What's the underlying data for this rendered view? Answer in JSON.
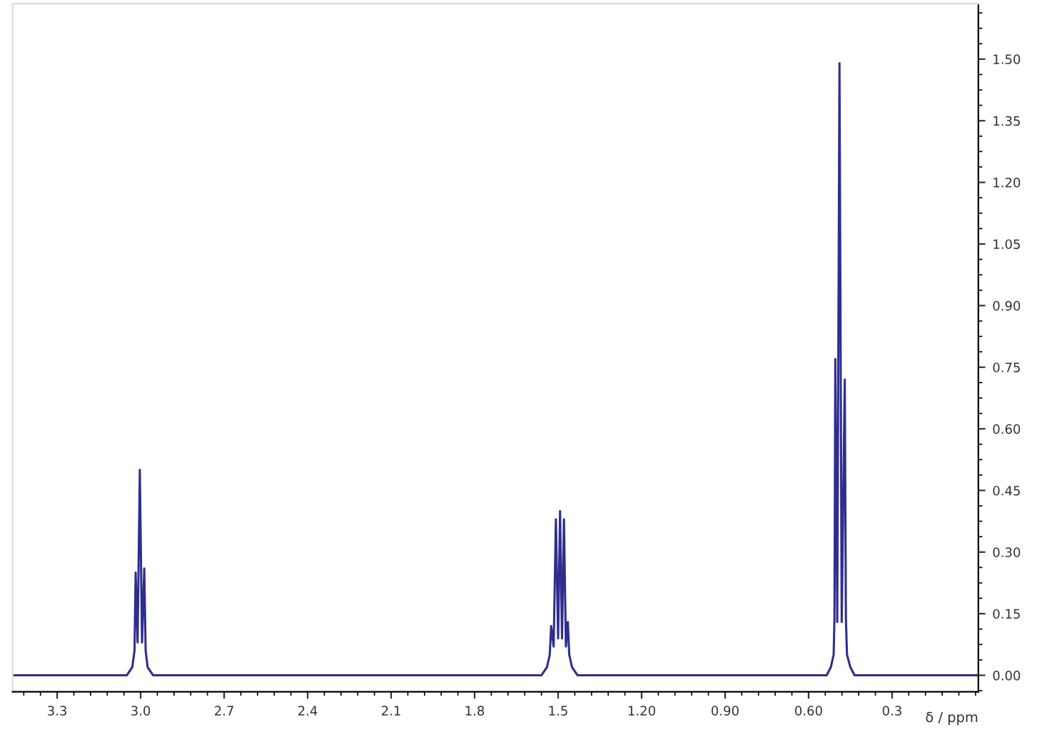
{
  "chart_data": {
    "type": "line",
    "xlabel": "δ / ppm",
    "series": [
      {
        "color": "#2e2e8f",
        "x": [
          3.46,
          3.05,
          3.03,
          3.022,
          3.018,
          3.011,
          3.003,
          2.995,
          2.987,
          2.982,
          2.975,
          2.955,
          1.56,
          1.54,
          1.53,
          1.525,
          1.516,
          1.508,
          1.5,
          1.493,
          1.486,
          1.479,
          1.472,
          1.465,
          1.46,
          1.45,
          1.43,
          0.535,
          0.52,
          0.51,
          0.507,
          0.504,
          0.497,
          0.489,
          0.481,
          0.47,
          0.466,
          0.462,
          0.45,
          0.435,
          -0.01
        ],
        "values": [
          0,
          0,
          0.02,
          0.06,
          0.25,
          0.08,
          0.5,
          0.08,
          0.26,
          0.06,
          0.02,
          0,
          0,
          0.02,
          0.05,
          0.12,
          0.07,
          0.38,
          0.09,
          0.4,
          0.09,
          0.38,
          0.07,
          0.13,
          0.05,
          0.02,
          0,
          0,
          0.02,
          0.05,
          0.14,
          0.77,
          0.13,
          1.49,
          0.13,
          0.72,
          0.14,
          0.05,
          0.02,
          0,
          0
        ]
      }
    ],
    "xlim": [
      3.46,
      -0.01
    ],
    "ylim": [
      -0.04,
      1.635
    ],
    "xticks": [
      3.3,
      {
        "value": 3.0,
        "label": "3.0"
      },
      2.7,
      2.4,
      2.1,
      1.8,
      1.5,
      {
        "value": 1.2,
        "label": "1.20"
      },
      {
        "value": 0.9,
        "label": "0.90"
      },
      {
        "value": 0.6,
        "label": "0.60"
      },
      0.3
    ],
    "yticks": [
      {
        "value": 0,
        "label": "0.00"
      },
      0.15,
      {
        "value": 0.3,
        "label": "0.30"
      },
      0.45,
      {
        "value": 0.6,
        "label": "0.60"
      },
      0.75,
      {
        "value": 0.9,
        "label": "0.90"
      },
      1.05,
      {
        "value": 1.2,
        "label": "1.20"
      },
      1.35,
      {
        "value": 1.5,
        "label": "1.50"
      }
    ],
    "grid": false,
    "legend": false,
    "marker": "none",
    "line_style": "solid"
  }
}
